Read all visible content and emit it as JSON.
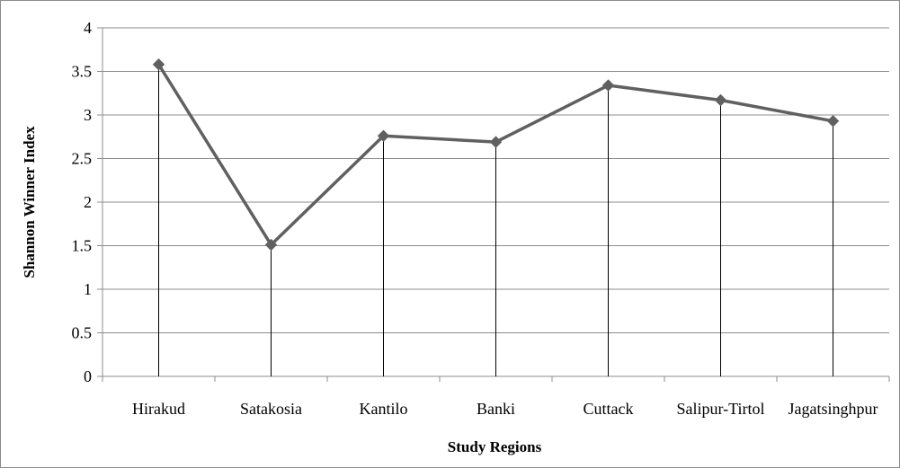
{
  "chart_data": {
    "type": "line",
    "title": "",
    "xlabel": "Study Regions",
    "ylabel": "Shannon Winner Index",
    "categories": [
      "Hirakud",
      "Satakosia",
      "Kantilo",
      "Banki",
      "Cuttack",
      "Salipur-Tirtol",
      "Jagatsinghpur"
    ],
    "series": [
      {
        "values": [
          3.58,
          1.51,
          2.76,
          2.69,
          3.34,
          3.17,
          2.93
        ]
      }
    ],
    "ylim": [
      0,
      4
    ],
    "yticks": [
      "0",
      "0.5",
      "1",
      "1.5",
      "2",
      "2.5",
      "3",
      "3.5",
      "4"
    ],
    "grid": "horizontal",
    "drop_lines": true,
    "marker": "diamond",
    "legend": "none",
    "colors": {
      "line": "#606060",
      "grid": "#8c8c8c",
      "drop": "#000000"
    }
  }
}
